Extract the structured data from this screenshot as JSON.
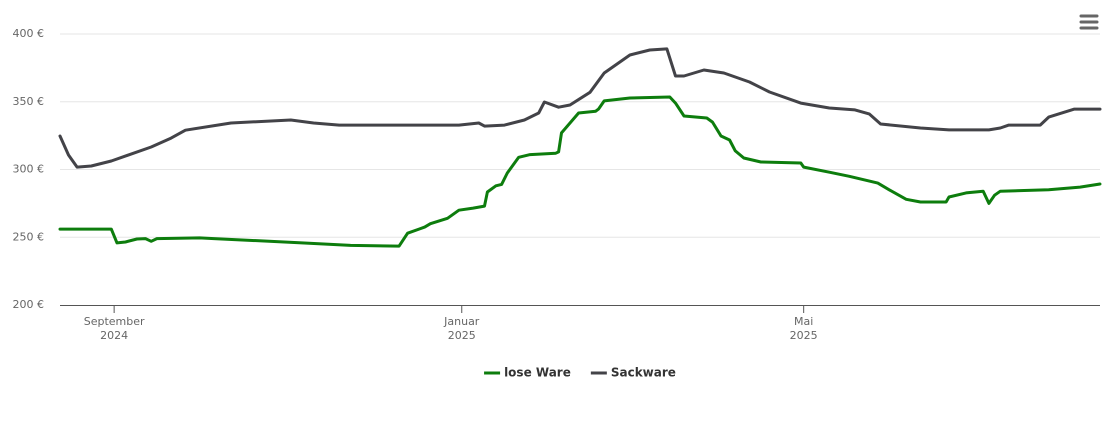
{
  "chart_data": {
    "type": "line",
    "xlim": [
      "2024-08-13",
      "2025-08-13"
    ],
    "xticks": [
      {
        "value": "2024-09-01",
        "label": "September 2024"
      },
      {
        "value": "2025-01-01",
        "label": "Januar 2025"
      },
      {
        "value": "2025-05-01",
        "label": "Mai 2025"
      }
    ],
    "ylim": [
      200,
      400
    ],
    "yticks": [
      {
        "value": 200,
        "label": "200 €"
      },
      {
        "value": 250,
        "label": "250 €"
      },
      {
        "value": 300,
        "label": "300 €"
      },
      {
        "value": 350,
        "label": "350 €"
      },
      {
        "value": 400,
        "label": "400 €"
      }
    ],
    "grid": true,
    "legend": "bottom",
    "series": [
      {
        "name": "lose Ware",
        "color": "#0d7d0d",
        "x": [
          "2024-08-13",
          "2024-08-31",
          "2024-09-02",
          "2024-09-05",
          "2024-09-09",
          "2024-09-12",
          "2024-09-14",
          "2024-09-16",
          "2024-10-01",
          "2024-10-06",
          "2024-11-05",
          "2024-11-23",
          "2024-12-10",
          "2024-12-13",
          "2024-12-17",
          "2024-12-19",
          "2024-12-21",
          "2024-12-27",
          "2024-12-31",
          "2025-01-05",
          "2025-01-09",
          "2025-01-10",
          "2025-01-13",
          "2025-01-15",
          "2025-01-17",
          "2025-01-21",
          "2025-01-25",
          "2025-02-03",
          "2025-02-04",
          "2025-02-05",
          "2025-02-11",
          "2025-02-17",
          "2025-02-18",
          "2025-02-20",
          "2025-03-01",
          "2025-03-15",
          "2025-03-17",
          "2025-03-20",
          "2025-03-28",
          "2025-03-30",
          "2025-04-02",
          "2025-04-05",
          "2025-04-07",
          "2025-04-10",
          "2025-04-16",
          "2025-04-30",
          "2025-05-01",
          "2025-05-10",
          "2025-05-17",
          "2025-05-27",
          "2025-05-31",
          "2025-06-06",
          "2025-06-11",
          "2025-06-20",
          "2025-06-21",
          "2025-06-27",
          "2025-07-03",
          "2025-07-05",
          "2025-07-07",
          "2025-07-09",
          "2025-07-26",
          "2025-08-06",
          "2025-08-13"
        ],
        "values": [
          256,
          256,
          245.8,
          246.5,
          248.7,
          249,
          247,
          249,
          249.5,
          249,
          246,
          244,
          243.5,
          253,
          256,
          257.5,
          260,
          264,
          270,
          271.5,
          273,
          283.4,
          288,
          289,
          297.4,
          309,
          311,
          312,
          313,
          327,
          341.7,
          343,
          344.6,
          350.6,
          352.8,
          353.5,
          349,
          339.5,
          338,
          335,
          324.7,
          321.8,
          313.7,
          308.5,
          305.5,
          304.8,
          301.8,
          298,
          295,
          290,
          285,
          278,
          276,
          276,
          279.7,
          282.7,
          284,
          275,
          281,
          284,
          285,
          287,
          289.3
        ]
      },
      {
        "name": "Sackware",
        "color": "#434348",
        "x": [
          "2024-08-13",
          "2024-08-16",
          "2024-08-19",
          "2024-08-24",
          "2024-08-31",
          "2024-09-14",
          "2024-09-21",
          "2024-09-26",
          "2024-10-12",
          "2024-11-02",
          "2024-11-10",
          "2024-11-19",
          "2024-12-31",
          "2025-01-07",
          "2025-01-09",
          "2025-01-16",
          "2025-01-23",
          "2025-01-28",
          "2025-01-30",
          "2025-02-04",
          "2025-02-08",
          "2025-02-15",
          "2025-02-20",
          "2025-03-01",
          "2025-03-08",
          "2025-03-14",
          "2025-03-17",
          "2025-03-20",
          "2025-03-27",
          "2025-04-03",
          "2025-04-12",
          "2025-04-19",
          "2025-04-30",
          "2025-05-10",
          "2025-05-19",
          "2025-05-24",
          "2025-05-28",
          "2025-06-11",
          "2025-06-21",
          "2025-07-05",
          "2025-07-09",
          "2025-07-12",
          "2025-07-23",
          "2025-07-26",
          "2025-08-04",
          "2025-08-13"
        ],
        "values": [
          324.7,
          310.7,
          301.8,
          302.6,
          306.3,
          316.6,
          323.2,
          329,
          334.3,
          336.5,
          334.3,
          332.8,
          332.8,
          334.3,
          332,
          332.8,
          336.5,
          341.7,
          349.8,
          346,
          347.6,
          357,
          371.2,
          384.5,
          388.2,
          389,
          369,
          369,
          373.4,
          371.2,
          364.6,
          357.2,
          349,
          345.4,
          344,
          341,
          333.6,
          330.6,
          329.2,
          329.2,
          330.6,
          332.8,
          332.8,
          338.7,
          344.6,
          344.6
        ]
      }
    ]
  }
}
